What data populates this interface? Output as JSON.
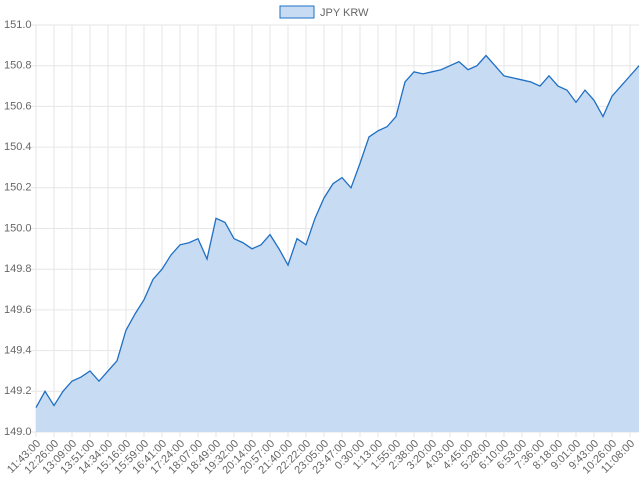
{
  "chart_data": {
    "type": "area",
    "categories": [
      "11:43:00",
      null,
      "12:26:00",
      null,
      "13:09:00",
      null,
      "13:51:00",
      null,
      "14:34:00",
      null,
      "15:16:00",
      null,
      "15:59:00",
      null,
      "16:41:00",
      null,
      "17:24:00",
      null,
      "18:07:00",
      null,
      "18:49:00",
      null,
      "19:32:00",
      null,
      "20:14:00",
      null,
      "20:57:00",
      null,
      "21:40:00",
      null,
      "22:22:00",
      null,
      "23:05:00",
      null,
      "23:47:00",
      null,
      "0:30:00",
      null,
      "1:13:00",
      null,
      "1:55:00",
      null,
      "2:38:00",
      null,
      "3:20:00",
      null,
      "4:03:00",
      null,
      "4:45:00",
      null,
      "5:28:00",
      null,
      "6:10:00",
      null,
      "6:53:00",
      null,
      "7:36:00",
      null,
      "8:18:00",
      null,
      "9:01:00",
      null,
      "9:43:00",
      null,
      "10:26:00",
      null,
      "11:08:00",
      null
    ],
    "series": [
      {
        "name": "JPY KRW",
        "color": "#1f6fc4",
        "fill": "#c7dcf3",
        "values": [
          149.12,
          149.2,
          149.13,
          149.2,
          149.25,
          149.27,
          149.3,
          149.25,
          149.3,
          149.35,
          149.5,
          149.58,
          149.65,
          149.75,
          149.8,
          149.87,
          149.92,
          149.93,
          149.95,
          149.85,
          150.05,
          150.03,
          149.95,
          149.93,
          149.9,
          149.92,
          149.97,
          149.9,
          149.82,
          149.95,
          149.92,
          150.05,
          150.15,
          150.22,
          150.25,
          150.2,
          150.32,
          150.45,
          150.48,
          150.5,
          150.55,
          150.72,
          150.77,
          150.76,
          150.77,
          150.78,
          150.8,
          150.82,
          150.78,
          150.8,
          150.85,
          150.8,
          150.75,
          150.74,
          150.73,
          150.72,
          150.7,
          150.75,
          150.7,
          150.68,
          150.62,
          150.68,
          150.63,
          150.55,
          150.65,
          150.7,
          150.75,
          150.8
        ]
      }
    ],
    "ylim": [
      149,
      151
    ],
    "yticks": [
      {
        "value": 149,
        "label": "149.0"
      },
      149.2,
      149.4,
      149.6,
      149.8,
      {
        "value": 150,
        "label": "150.0"
      },
      150.2,
      150.4,
      150.6,
      150.8,
      {
        "value": 151,
        "label": "151.0"
      }
    ],
    "grid": true,
    "legend": "top"
  }
}
